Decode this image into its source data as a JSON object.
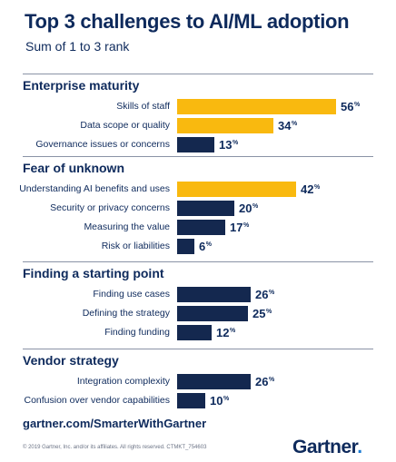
{
  "colors": {
    "highlight": "#f9b90f",
    "base": "#14284f",
    "text": "#0e2a5c"
  },
  "chart_data": {
    "type": "bar",
    "orientation": "horizontal",
    "title": "Top 3 challenges to AI/ML adoption",
    "subtitle": "Sum of 1 to 3 rank",
    "unit": "%",
    "groups": [
      {
        "name": "Enterprise maturity",
        "items": [
          {
            "label": "Skills of staff",
            "value": 56,
            "highlight": true
          },
          {
            "label": "Data scope or quality",
            "value": 34,
            "highlight": true
          },
          {
            "label": "Governance issues or concerns",
            "value": 13,
            "highlight": false
          }
        ]
      },
      {
        "name": "Fear of unknown",
        "items": [
          {
            "label": "Understanding AI benefits and uses",
            "value": 42,
            "highlight": true
          },
          {
            "label": "Security or privacy concerns",
            "value": 20,
            "highlight": false
          },
          {
            "label": "Measuring the value",
            "value": 17,
            "highlight": false
          },
          {
            "label": "Risk or liabilities",
            "value": 6,
            "highlight": false
          }
        ]
      },
      {
        "name": "Finding a starting point",
        "items": [
          {
            "label": "Finding use cases",
            "value": 26,
            "highlight": false
          },
          {
            "label": "Defining the strategy",
            "value": 25,
            "highlight": false
          },
          {
            "label": "Finding funding",
            "value": 12,
            "highlight": false
          }
        ]
      },
      {
        "name": "Vendor strategy",
        "items": [
          {
            "label": "Integration complexity",
            "value": 26,
            "highlight": false
          },
          {
            "label": "Confusion over vendor capabilities",
            "value": 10,
            "highlight": false
          }
        ]
      }
    ]
  },
  "footer": {
    "url": "gartner.com/SmarterWithGartner",
    "copyright": "© 2019 Gartner, Inc. and/or its affiliates. All rights reserved. CTMKT_754603",
    "logo_text": "Gartner",
    "logo_dot": "."
  }
}
